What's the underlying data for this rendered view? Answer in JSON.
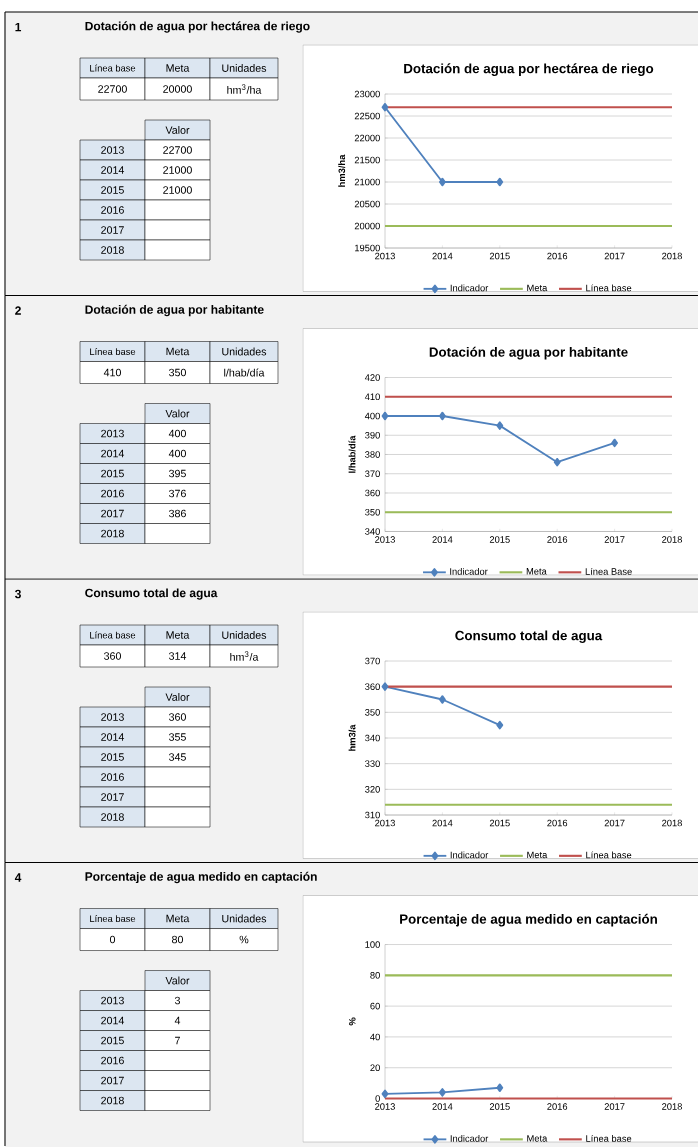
{
  "chart_data": [
    {
      "type": "line",
      "title": "Dotación de agua por hectárea de riego",
      "ylabel": "hm3/ha",
      "x": [
        2013,
        2014,
        2015,
        2016,
        2017,
        2018
      ],
      "xlim": [
        2013,
        2018
      ],
      "xticks": [
        2013,
        2014,
        2015,
        2016,
        2017,
        2018
      ],
      "ylim": [
        19500,
        23000
      ],
      "yticks": [
        19500,
        20000,
        20500,
        21000,
        21500,
        22000,
        22500,
        23000
      ],
      "grid": "y",
      "legend": "bottom",
      "annotations": [
        "1",
        "Dotación de agua por hectárea de riego",
        "Línea base",
        "Meta",
        "Unidades",
        "22700",
        "20000",
        "hm$^{3}$/ha",
        "Valor",
        "2013",
        "2014",
        "2015",
        "2016",
        "2017",
        "2018",
        "22700",
        "21000",
        "21000"
      ],
      "series": [
        {
          "name": "Indicador",
          "color": "#4f81bd",
          "marker": "diamond",
          "values": [
            22700,
            21000,
            21000,
            null,
            null,
            null
          ]
        },
        {
          "name": "Meta",
          "color": "#9bbb59",
          "values": [
            20000,
            20000,
            20000,
            20000,
            20000,
            20000
          ]
        },
        {
          "name": "Línea base",
          "color": "#c0504d",
          "values": [
            22700,
            22700,
            22700,
            22700,
            22700,
            22700
          ]
        }
      ]
    },
    {
      "type": "line",
      "title": "Dotación de agua por habitante",
      "ylabel": "l/hab/día",
      "x": [
        2013,
        2014,
        2015,
        2016,
        2017,
        2018
      ],
      "xlim": [
        2013,
        2018
      ],
      "xticks": [
        2013,
        2014,
        2015,
        2016,
        2017,
        2018
      ],
      "ylim": [
        340,
        420
      ],
      "yticks": [
        340,
        350,
        360,
        370,
        380,
        390,
        400,
        410,
        420
      ],
      "grid": "y",
      "legend": "bottom",
      "annotations": [
        "2",
        "Dotación de agua por habitante",
        "Línea base",
        "Meta",
        "Unidades",
        "410",
        "350",
        "l/hab/día",
        "Valor",
        "2013",
        "2014",
        "2015",
        "2016",
        "2017",
        "2018",
        "400",
        "400",
        "395",
        "376",
        "386"
      ],
      "series": [
        {
          "name": "Indicador",
          "color": "#4f81bd",
          "marker": "diamond",
          "values": [
            400,
            400,
            395,
            376,
            386,
            null
          ]
        },
        {
          "name": "Meta",
          "color": "#9bbb59",
          "values": [
            350,
            350,
            350,
            350,
            350,
            350
          ]
        },
        {
          "name": "Línea Base",
          "color": "#c0504d",
          "values": [
            410,
            410,
            410,
            410,
            410,
            410
          ]
        }
      ]
    },
    {
      "type": "line",
      "title": "Consumo total de agua",
      "ylabel": "hm3/a",
      "x": [
        2013,
        2014,
        2015,
        2016,
        2017,
        2018
      ],
      "xlim": [
        2013,
        2018
      ],
      "xticks": [
        2013,
        2014,
        2015,
        2016,
        2017,
        2018
      ],
      "ylim": [
        310,
        370
      ],
      "yticks": [
        310,
        320,
        330,
        340,
        350,
        360,
        370
      ],
      "grid": "y",
      "legend": "bottom",
      "annotations": [
        "3",
        "Consumo total de agua",
        "Línea base",
        "Meta",
        "Unidades",
        "360",
        "314",
        "hm$^{3}$/a",
        "Valor",
        "2013",
        "2014",
        "2015",
        "2016",
        "2017",
        "2018",
        "360",
        "355",
        "345"
      ],
      "series": [
        {
          "name": "Indicador",
          "color": "#4f81bd",
          "marker": "diamond",
          "values": [
            360,
            355,
            345,
            null,
            null,
            null
          ]
        },
        {
          "name": "Meta",
          "color": "#9bbb59",
          "values": [
            314,
            314,
            314,
            314,
            314,
            314
          ]
        },
        {
          "name": "Línea base",
          "color": "#c0504d",
          "values": [
            360,
            360,
            360,
            360,
            360,
            360
          ]
        }
      ]
    },
    {
      "type": "line",
      "title": "Porcentaje de agua medido en captación",
      "ylabel": "%",
      "x": [
        2013,
        2014,
        2015,
        2016,
        2017,
        2018
      ],
      "xlim": [
        2013,
        2018
      ],
      "xticks": [
        2013,
        2014,
        2015,
        2016,
        2017,
        2018
      ],
      "ylim": [
        0,
        100
      ],
      "yticks": [
        0,
        20,
        40,
        60,
        80,
        100
      ],
      "grid": "y",
      "legend": "bottom",
      "annotations": [
        "4",
        "Porcentaje de agua medido en captación",
        "Línea base",
        "Meta",
        "Unidades",
        "0",
        "80",
        "%",
        "Valor",
        "2013",
        "2014",
        "2015",
        "2016",
        "2017",
        "2018",
        "3",
        "4",
        "7"
      ],
      "series": [
        {
          "name": "Indicador",
          "color": "#4f81bd",
          "marker": "diamond",
          "values": [
            3,
            4,
            7,
            null,
            null,
            null
          ]
        },
        {
          "name": "Meta",
          "color": "#9bbb59",
          "values": [
            80,
            80,
            80,
            80,
            80,
            80
          ]
        },
        {
          "name": "Línea base",
          "color": "#c0504d",
          "values": [
            0,
            0,
            0,
            0,
            0,
            0
          ]
        }
      ]
    }
  ]
}
